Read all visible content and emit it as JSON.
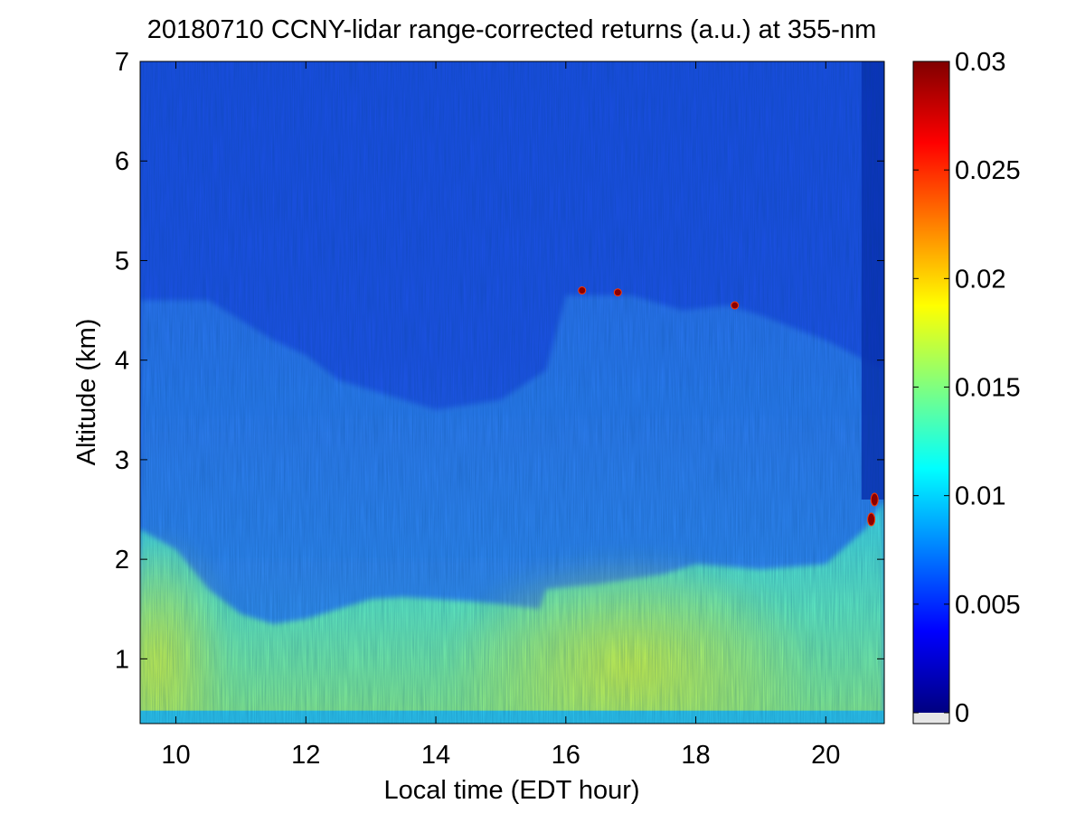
{
  "chart_data": {
    "type": "heatmap",
    "title": "20180710 CCNY-lidar range-corrected returns (a.u.) at 355-nm",
    "xlabel": "Local time (EDT hour)",
    "ylabel": "Altitude (km)",
    "xlim": [
      9.45,
      20.9
    ],
    "ylim": [
      0.35,
      7
    ],
    "xticks": [
      10,
      12,
      14,
      16,
      18,
      20
    ],
    "yticks": [
      1,
      2,
      3,
      4,
      5,
      6,
      7
    ],
    "colorbar": {
      "colormap": "jet",
      "range": [
        0,
        0.03
      ],
      "ticks": [
        0,
        0.005,
        0.01,
        0.015,
        0.02,
        0.025,
        0.03
      ],
      "tick_labels": [
        "0",
        "0.005",
        "0.01",
        "0.015",
        "0.02",
        "0.025",
        "0.03"
      ]
    },
    "features": {
      "boundary_layer_top_km": [
        [
          9.45,
          2.3
        ],
        [
          10.0,
          2.1
        ],
        [
          10.5,
          1.7
        ],
        [
          11.0,
          1.45
        ],
        [
          11.5,
          1.35
        ],
        [
          12.0,
          1.4
        ],
        [
          12.5,
          1.5
        ],
        [
          13.0,
          1.6
        ],
        [
          13.5,
          1.62
        ],
        [
          14.0,
          1.6
        ],
        [
          14.5,
          1.58
        ],
        [
          15.0,
          1.55
        ],
        [
          15.6,
          1.5
        ],
        [
          15.7,
          1.7
        ],
        [
          16.5,
          1.75
        ],
        [
          17.5,
          1.85
        ],
        [
          18.0,
          1.95
        ],
        [
          19.0,
          1.9
        ],
        [
          20.0,
          1.95
        ],
        [
          20.6,
          2.3
        ],
        [
          20.9,
          2.6
        ]
      ],
      "residual_layer_top_km": [
        [
          9.45,
          4.6
        ],
        [
          10.5,
          4.6
        ],
        [
          11.5,
          4.2
        ],
        [
          12.0,
          4.05
        ],
        [
          12.5,
          3.8
        ],
        [
          13.0,
          3.7
        ],
        [
          13.5,
          3.6
        ],
        [
          14.0,
          3.5
        ],
        [
          14.5,
          3.55
        ],
        [
          15.0,
          3.6
        ],
        [
          15.7,
          3.9
        ],
        [
          16.0,
          4.65
        ],
        [
          17.0,
          4.65
        ],
        [
          17.8,
          4.5
        ],
        [
          18.5,
          4.55
        ],
        [
          19.0,
          4.45
        ],
        [
          20.0,
          4.2
        ],
        [
          20.6,
          4.0
        ],
        [
          20.9,
          3.9
        ]
      ],
      "clouds": [
        {
          "time": 16.25,
          "alt_km": 4.7,
          "value": 0.03
        },
        {
          "time": 16.8,
          "alt_km": 4.68,
          "value": 0.03
        },
        {
          "time": 18.6,
          "alt_km": 4.55,
          "value": 0.03
        },
        {
          "time": 20.7,
          "alt_km": 2.4,
          "value": 0.03
        },
        {
          "time": 20.75,
          "alt_km": 2.6,
          "value": 0.03
        }
      ],
      "background_value": 0.003,
      "near_surface_max_value": 0.017
    }
  }
}
